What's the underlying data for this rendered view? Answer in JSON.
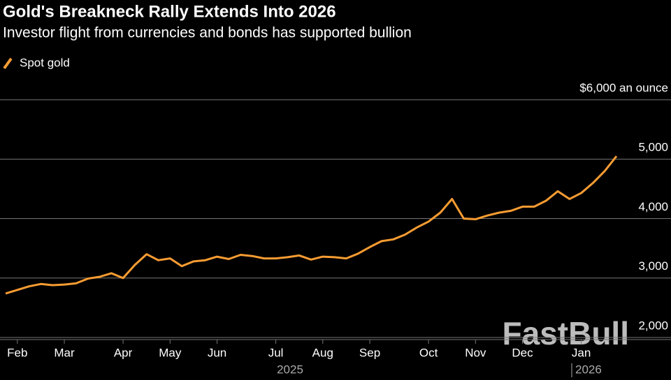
{
  "chart_data": {
    "type": "line",
    "title": "Gold's Breakneck Rally Extends Into 2026",
    "subtitle": "Investor flight from currencies and bonds has supported bullion",
    "watermark": "FastBull",
    "categories": [
      null,
      "Feb",
      null,
      null,
      null,
      "Mar",
      null,
      null,
      null,
      null,
      "Apr",
      null,
      null,
      null,
      "May",
      null,
      null,
      null,
      "Jun",
      null,
      null,
      null,
      null,
      "Jul",
      null,
      null,
      null,
      "Aug",
      null,
      null,
      null,
      "Sep",
      null,
      null,
      null,
      null,
      "Oct",
      null,
      null,
      null,
      "Nov",
      null,
      null,
      null,
      "Dec",
      null,
      null,
      null,
      null,
      "Jan",
      null,
      null,
      null
    ],
    "x_group_labels": [
      "2025",
      "2026"
    ],
    "series": [
      {
        "name": "Spot gold",
        "color": "#f89c32",
        "values": [
          2740,
          2800,
          2860,
          2900,
          2880,
          2890,
          2910,
          2990,
          3020,
          3080,
          3000,
          3220,
          3400,
          3300,
          3330,
          3200,
          3280,
          3300,
          3360,
          3320,
          3390,
          3370,
          3330,
          3330,
          3350,
          3380,
          3310,
          3360,
          3350,
          3330,
          3410,
          3520,
          3620,
          3650,
          3730,
          3850,
          3950,
          4100,
          4330,
          4000,
          3990,
          4050,
          4100,
          4130,
          4200,
          4200,
          4300,
          4460,
          4330,
          4430,
          4600,
          4800,
          5050
        ]
      }
    ],
    "ylim": [
      2000,
      6000
    ],
    "yticks": [
      {
        "value": 2000,
        "label": "2,000"
      },
      {
        "value": 3000,
        "label": "3,000"
      },
      {
        "value": 4000,
        "label": "4,000"
      },
      {
        "value": 5000,
        "label": "5,000"
      },
      {
        "value": 6000,
        "label": "$6,000 an ounce"
      }
    ],
    "grid": true
  }
}
